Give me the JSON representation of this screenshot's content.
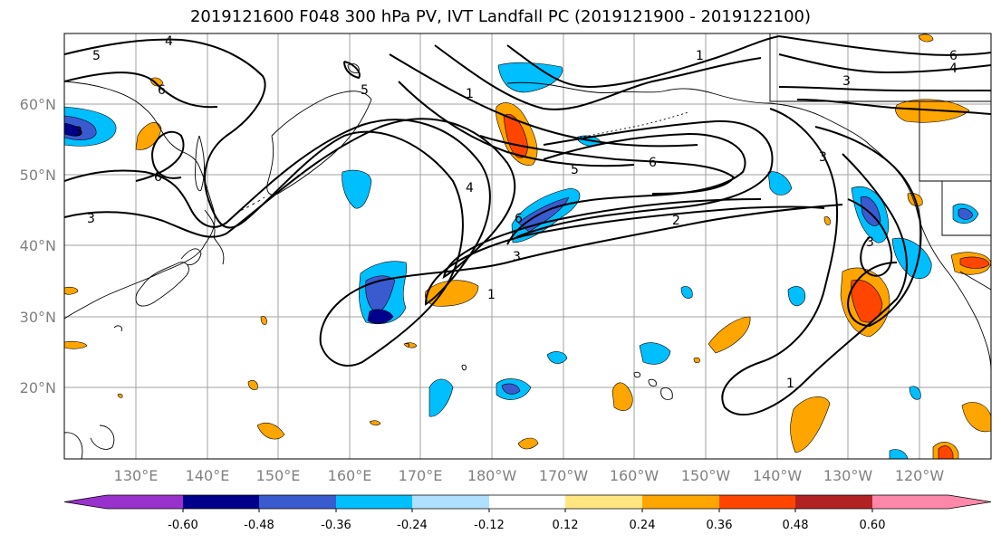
{
  "title": "2019121600 F048 300 hPa PV, IVT Landfall PC (2019121900 - 2019122100)",
  "lat_labels": [
    "60°N",
    "50°N",
    "40°N",
    "30°N",
    "20°N"
  ],
  "lon_labels": [
    "130°E",
    "140°E",
    "150°E",
    "160°E",
    "170°E",
    "180°W",
    "170°W",
    "160°W",
    "150°W",
    "140°W",
    "130°W",
    "120°W"
  ],
  "colorbar": {
    "ticks": [
      "-0.60",
      "-0.48",
      "-0.36",
      "-0.24",
      "-0.12",
      "0.12",
      "0.24",
      "0.36",
      "0.48",
      "0.60"
    ],
    "colors": [
      "#9932CC",
      "#00008B",
      "#3A5BCF",
      "#00BFFF",
      "#B0E0FF",
      "#FFFFFF",
      "#FFE680",
      "#FFA500",
      "#FF4500",
      "#B22222",
      "#FF88AA"
    ]
  },
  "contour_labels": [
    "4",
    "5",
    "6",
    "5",
    "1",
    "3",
    "3",
    "6",
    "4",
    "6",
    "4",
    "5",
    "6",
    "2",
    "3",
    "1",
    "1",
    "3",
    "6",
    "3",
    "1",
    "3"
  ]
}
